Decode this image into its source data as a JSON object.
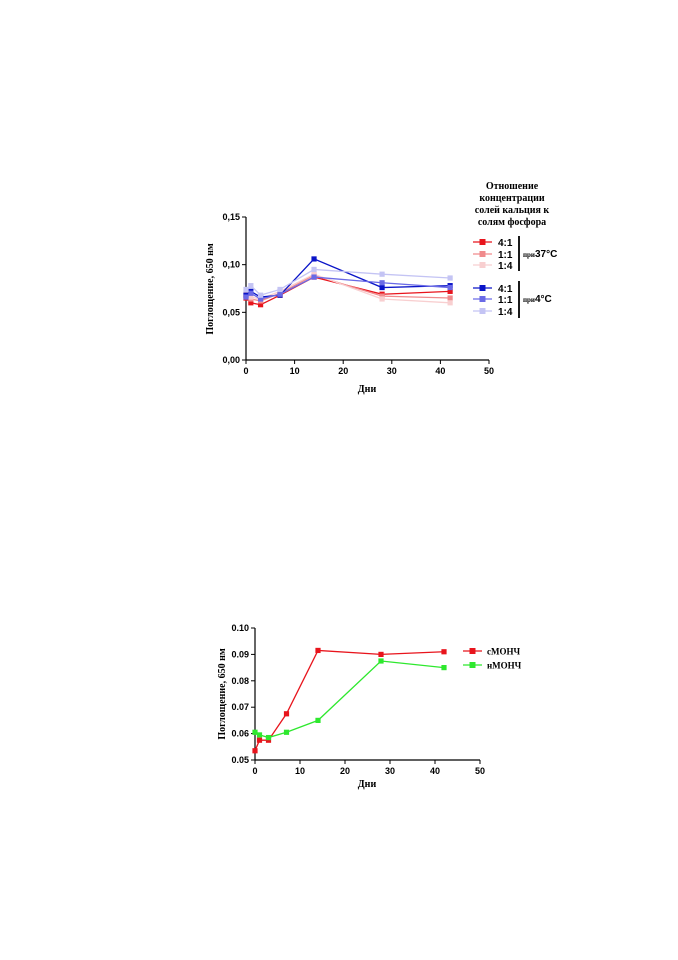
{
  "chart_data": [
    {
      "type": "line",
      "xlabel": "Дни",
      "ylabel": "Поглощение, 650 нм",
      "xlim": [
        0,
        50
      ],
      "ylim": [
        0,
        0.15
      ],
      "xticks": [
        "0",
        "10",
        "20",
        "30",
        "40",
        "50"
      ],
      "yticks": [
        "0,00",
        "0,05",
        "0,10",
        "0,15"
      ],
      "legend_title": [
        "Отношение",
        "концентрации",
        "солей кальция к",
        "солям фосфора"
      ],
      "legend_position": "right",
      "groups": [
        {
          "prefix": "при",
          "label": "37°C"
        },
        {
          "prefix": "при",
          "label": "4°C"
        }
      ],
      "series": [
        {
          "name": "4:1",
          "group": 0,
          "color": "#e8141c",
          "x": [
            0,
            1,
            3,
            7,
            14,
            28,
            42
          ],
          "values": [
            0.065,
            0.06,
            0.058,
            0.068,
            0.087,
            0.069,
            0.072
          ]
        },
        {
          "name": "1:1",
          "group": 0,
          "color": "#f08a8c",
          "x": [
            0,
            1,
            3,
            7,
            14,
            28,
            42
          ],
          "values": [
            0.068,
            0.064,
            0.062,
            0.07,
            0.089,
            0.067,
            0.065
          ]
        },
        {
          "name": "1:4",
          "group": 0,
          "color": "#f8cfd0",
          "x": [
            0,
            1,
            3,
            7,
            14,
            28,
            42
          ],
          "values": [
            0.07,
            0.066,
            0.064,
            0.072,
            0.09,
            0.064,
            0.06
          ]
        },
        {
          "name": "4:1",
          "group": 1,
          "color": "#0a14c8",
          "x": [
            0,
            1,
            3,
            7,
            14,
            28,
            42
          ],
          "values": [
            0.068,
            0.072,
            0.066,
            0.068,
            0.106,
            0.076,
            0.078
          ]
        },
        {
          "name": "1:1",
          "group": 1,
          "color": "#6a6ae6",
          "x": [
            0,
            1,
            3,
            7,
            14,
            28,
            42
          ],
          "values": [
            0.066,
            0.07,
            0.064,
            0.069,
            0.087,
            0.081,
            0.076
          ]
        },
        {
          "name": "1:4",
          "group": 1,
          "color": "#c4c4f4",
          "x": [
            0,
            1,
            3,
            7,
            14,
            28,
            42
          ],
          "values": [
            0.074,
            0.078,
            0.068,
            0.074,
            0.095,
            0.09,
            0.086
          ]
        }
      ]
    },
    {
      "type": "line",
      "xlabel": "Дни",
      "ylabel": "Поглощение, 650 нм",
      "xlim": [
        0,
        50
      ],
      "ylim": [
        0.05,
        0.1
      ],
      "xticks": [
        "0",
        "10",
        "20",
        "30",
        "40",
        "50"
      ],
      "yticks": [
        "0.05",
        "0.06",
        "0.07",
        "0.08",
        "0.09",
        "0.10"
      ],
      "legend_position": "right",
      "series": [
        {
          "name": "сМОНЧ",
          "color": "#e8141c",
          "x": [
            0,
            1,
            3,
            7,
            14,
            28,
            42
          ],
          "values": [
            0.0535,
            0.0575,
            0.0575,
            0.0675,
            0.0915,
            0.09,
            0.091
          ]
        },
        {
          "name": "нМОНЧ",
          "color": "#2ee82e",
          "x": [
            0,
            1,
            3,
            7,
            14,
            28,
            42
          ],
          "values": [
            0.0605,
            0.0595,
            0.0585,
            0.0605,
            0.065,
            0.0875,
            0.085
          ]
        }
      ]
    }
  ]
}
